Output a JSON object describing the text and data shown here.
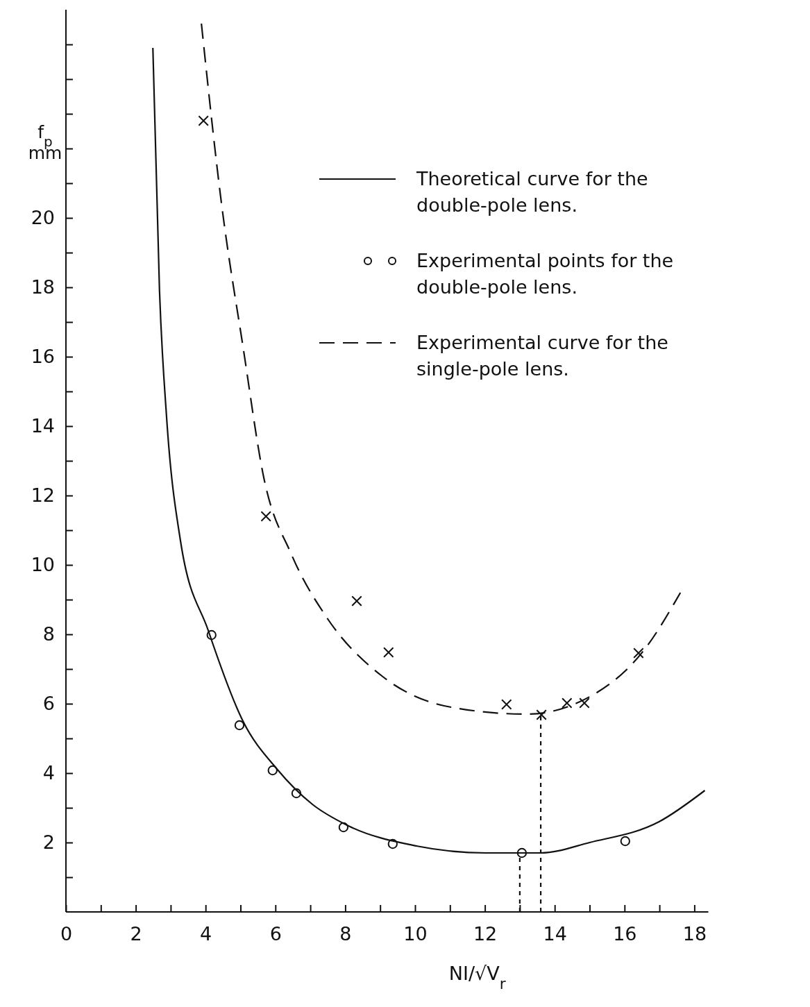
{
  "chart_data": {
    "type": "line",
    "xlabel": "NI/√V$_{r}$",
    "ylabel": "f$_{p}$ mm",
    "xlim": [
      0,
      18.4
    ],
    "ylim": [
      0,
      26
    ],
    "xticks": [
      0,
      {
        "value": 1,
        "label": null
      },
      2,
      {
        "value": 3,
        "label": null
      },
      4,
      {
        "value": 5,
        "label": null
      },
      6,
      {
        "value": 7,
        "label": null
      },
      8,
      {
        "value": 9,
        "label": null
      },
      10,
      {
        "value": 11,
        "label": null
      },
      12,
      {
        "value": 13,
        "label": null
      },
      14,
      {
        "value": 15,
        "label": null
      },
      16,
      {
        "value": 17,
        "label": null
      },
      18
    ],
    "yticks": [
      {
        "value": 1,
        "label": null
      },
      2,
      {
        "value": 3,
        "label": null
      },
      4,
      {
        "value": 5,
        "label": null
      },
      6,
      {
        "value": 7,
        "label": null
      },
      8,
      {
        "value": 9,
        "label": null
      },
      10,
      {
        "value": 11,
        "label": null
      },
      12,
      {
        "value": 13,
        "label": null
      },
      14,
      {
        "value": 15,
        "label": null
      },
      16,
      {
        "value": 17,
        "label": null
      },
      18,
      {
        "value": 19,
        "label": null
      },
      20,
      {
        "value": 21,
        "label": null
      },
      {
        "value": 22,
        "label": null
      },
      {
        "value": 23,
        "label": null
      },
      {
        "value": 24,
        "label": null
      },
      {
        "value": 25,
        "label": null
      }
    ],
    "grid": false,
    "legend": "top right",
    "series": [
      {
        "name": "Theoretical curve for the double-pole lens.",
        "color": "#111111",
        "line_style": "solid",
        "marker": "none",
        "x": [
          2.49,
          2.68,
          2.88,
          3.28,
          4.08,
          5.07,
          6.06,
          7.06,
          8.05,
          10.04,
          12.03,
          13.6,
          15.0,
          16.99,
          18.3
        ],
        "values": [
          24.9,
          17.9,
          14.3,
          10.7,
          8.1,
          5.5,
          4.1,
          3.1,
          2.5,
          1.9,
          1.7,
          1.7,
          2.0,
          2.6,
          3.5
        ]
      },
      {
        "type": "scatter",
        "name": "Experimental points for the double-pole lens.",
        "color": "#111111",
        "marker": "circle",
        "x": [
          4.17,
          4.97,
          5.92,
          6.6,
          7.95,
          9.36,
          13.06,
          16.02
        ],
        "values": [
          7.98,
          5.38,
          4.08,
          3.42,
          2.44,
          1.96,
          1.7,
          2.04
        ]
      },
      {
        "name": "Experimental curve for the single-pole lens.",
        "color": "#111111",
        "line_style": "dashed",
        "marker": "none",
        "x": [
          3.88,
          4.47,
          5.07,
          5.67,
          6.46,
          7.46,
          9.05,
          11.03,
          13.2,
          15.0,
          16.6,
          17.6
        ],
        "values": [
          25.6,
          20.3,
          16.3,
          12.5,
          10.3,
          8.5,
          6.8,
          5.9,
          5.7,
          6.2,
          7.6,
          9.2
        ]
      },
      {
        "type": "scatter",
        "color": "#111111",
        "marker": "cross",
        "x": [
          3.94,
          5.73,
          8.33,
          9.24,
          12.62,
          13.62,
          14.35,
          14.85,
          16.4
        ],
        "values": [
          22.8,
          11.4,
          8.96,
          7.48,
          5.98,
          5.68,
          6.02,
          6.02,
          7.46
        ]
      },
      {
        "color": "#111111",
        "line_style": "dotted",
        "marker": "none",
        "x": [
          13,
          13
        ],
        "values": [
          0,
          1.7
        ]
      },
      {
        "color": "#111111",
        "line_style": "dotted",
        "marker": "none",
        "x": [
          13.6,
          13.6
        ],
        "values": [
          0,
          5.68
        ]
      }
    ]
  }
}
